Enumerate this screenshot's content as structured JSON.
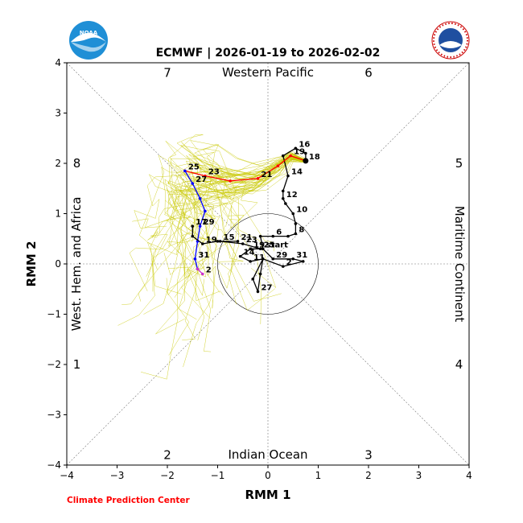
{
  "title": "ECMWF | 2026-01-19 to 2026-02-02",
  "credit": "Climate Prediction Center",
  "logos": {
    "noaa_text": "NOAA",
    "nws_text": "NATIONAL WEATHER SERVICE"
  },
  "colors": {
    "observed": "#000000",
    "forecast_week1": "#ff0000",
    "forecast_week2": "#0000ff",
    "forecast_tail": "#cc33cc",
    "ensemble": "#c8c800",
    "credit": "#ff0000"
  },
  "chart_data": {
    "type": "line",
    "title": "ECMWF | 2026-01-19 to 2026-02-02",
    "xlabel": "RMM 1",
    "ylabel": "RMM 2",
    "xlim": [
      -4,
      4
    ],
    "ylim": [
      -4,
      4
    ],
    "xticks": [
      "−4",
      "−3",
      "−2",
      "−1",
      "0",
      "1",
      "2",
      "3",
      "4"
    ],
    "yticks": [
      "−4",
      "−3",
      "−2",
      "−1",
      "0",
      "1",
      "2",
      "3",
      "4"
    ],
    "regions": {
      "top": "Western Pacific",
      "bottom": "Indian Ocean",
      "left": "West. Hem. and Africa",
      "right": "Maritime Continent"
    },
    "phases": [
      {
        "label": "1",
        "x": -3.8,
        "y": -2.0
      },
      {
        "label": "2",
        "x": -2.0,
        "y": -3.8
      },
      {
        "label": "3",
        "x": 2.0,
        "y": -3.8
      },
      {
        "label": "4",
        "x": 3.8,
        "y": -2.0
      },
      {
        "label": "5",
        "x": 3.8,
        "y": 2.0
      },
      {
        "label": "6",
        "x": 2.0,
        "y": 3.8
      },
      {
        "label": "7",
        "x": -2.0,
        "y": 3.8
      },
      {
        "label": "8",
        "x": -3.8,
        "y": 2.0
      }
    ],
    "circle_radius": 1,
    "grid": "diagonals and zero lines",
    "series": [
      {
        "name": "observed",
        "points": [
          {
            "x": -0.1,
            "y": 0.3,
            "label": "start"
          },
          {
            "x": -0.15,
            "y": 0.55,
            "label": ""
          },
          {
            "x": 0.1,
            "y": 0.55,
            "label": "6"
          },
          {
            "x": 0.4,
            "y": 0.55,
            "label": ""
          },
          {
            "x": 0.55,
            "y": 0.6,
            "label": "8"
          },
          {
            "x": 0.55,
            "y": 0.8,
            "label": ""
          },
          {
            "x": 0.5,
            "y": 1.0,
            "label": "10"
          },
          {
            "x": 0.35,
            "y": 1.2,
            "label": ""
          },
          {
            "x": 0.3,
            "y": 1.3,
            "label": "12"
          },
          {
            "x": 0.3,
            "y": 1.45,
            "label": ""
          },
          {
            "x": 0.4,
            "y": 1.75,
            "label": "14"
          },
          {
            "x": 0.3,
            "y": 2.15,
            "label": ""
          },
          {
            "x": 0.55,
            "y": 2.3,
            "label": "16"
          },
          {
            "x": 0.75,
            "y": 2.2,
            "label": ""
          },
          {
            "x": 0.75,
            "y": 2.05,
            "label": "18"
          }
        ]
      },
      {
        "name": "observed-late",
        "points": [
          {
            "x": -0.1,
            "y": 0.3,
            "label": ""
          },
          {
            "x": 0.1,
            "y": 0.1,
            "label": "29"
          },
          {
            "x": 0.5,
            "y": 0.1,
            "label": "31"
          },
          {
            "x": 0.7,
            "y": 0.05,
            "label": ""
          },
          {
            "x": 0.3,
            "y": -0.05,
            "label": "2"
          },
          {
            "x": -0.1,
            "y": 0.1,
            "label": ""
          },
          {
            "x": -0.15,
            "y": -0.2,
            "label": ""
          },
          {
            "x": -0.2,
            "y": -0.55,
            "label": "27"
          },
          {
            "x": -0.3,
            "y": -0.3,
            "label": ""
          },
          {
            "x": -0.1,
            "y": 0.1,
            "label": ""
          },
          {
            "x": -0.35,
            "y": 0.05,
            "label": "11"
          },
          {
            "x": -0.55,
            "y": 0.15,
            "label": "14"
          },
          {
            "x": -0.35,
            "y": 0.3,
            "label": "19"
          },
          {
            "x": -0.15,
            "y": 0.3,
            "label": "25"
          },
          {
            "x": -0.5,
            "y": 0.4,
            "label": "23"
          },
          {
            "x": -0.95,
            "y": 0.45,
            "label": "15"
          },
          {
            "x": -0.6,
            "y": 0.45,
            "label": "21"
          }
        ]
      },
      {
        "name": "forecast-week1",
        "points": [
          {
            "x": 0.75,
            "y": 2.05,
            "label": ""
          },
          {
            "x": 0.45,
            "y": 2.15,
            "label": "19"
          },
          {
            "x": 0.2,
            "y": 1.95,
            "label": ""
          },
          {
            "x": -0.2,
            "y": 1.7,
            "label": "21"
          },
          {
            "x": -0.75,
            "y": 1.65,
            "label": ""
          },
          {
            "x": -1.25,
            "y": 1.75,
            "label": "23"
          },
          {
            "x": -1.65,
            "y": 1.85,
            "label": "25"
          }
        ]
      },
      {
        "name": "forecast-week2",
        "points": [
          {
            "x": -1.65,
            "y": 1.85,
            "label": ""
          },
          {
            "x": -1.5,
            "y": 1.6,
            "label": "27"
          },
          {
            "x": -1.35,
            "y": 1.3,
            "label": ""
          },
          {
            "x": -1.25,
            "y": 1.05,
            "label": ""
          },
          {
            "x": -1.35,
            "y": 0.75,
            "label": "29"
          },
          {
            "x": -1.4,
            "y": 0.45,
            "label": ""
          },
          {
            "x": -1.45,
            "y": 0.1,
            "label": "31"
          },
          {
            "x": -1.4,
            "y": -0.1,
            "label": ""
          }
        ]
      },
      {
        "name": "forecast-tail",
        "points": [
          {
            "x": -1.4,
            "y": -0.1,
            "label": ""
          },
          {
            "x": -1.3,
            "y": -0.2,
            "label": "2"
          }
        ]
      },
      {
        "name": "observed-early",
        "points": [
          {
            "x": -1.5,
            "y": 0.75,
            "label": "17"
          },
          {
            "x": -1.5,
            "y": 0.55,
            "label": ""
          },
          {
            "x": -1.3,
            "y": 0.4,
            "label": "19"
          },
          {
            "x": -1.0,
            "y": 0.45,
            "label": ""
          }
        ]
      }
    ]
  }
}
